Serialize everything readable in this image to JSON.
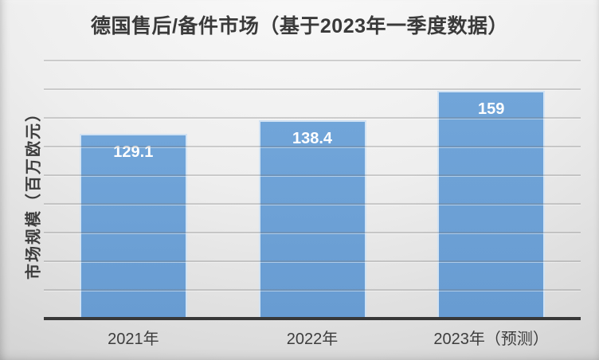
{
  "slide": {
    "title": "德国售后/备件市场（基于2023年一季度数据）"
  },
  "chart_data": {
    "type": "bar",
    "title": "德国售后/备件市场（基于2023年一季度数据）",
    "categories": [
      "2021年",
      "2022年",
      "2023年（预测）"
    ],
    "values": [
      129.1,
      138.4,
      159
    ],
    "value_labels": [
      "129.1",
      "138.4",
      "159"
    ],
    "xlabel": "",
    "ylabel": "市场规模（百万欧元）",
    "ylim": [
      0,
      180
    ],
    "gridline_step": 20,
    "grid": true,
    "legend": false,
    "data_labels": "inside-top",
    "colors": {
      "bar_fill": "#6CA0D5",
      "bar_border": "rgba(244,249,253,0.75)",
      "value_label": "#ffffff",
      "axis_line": "#383838",
      "gridline": "rgba(118,118,118,0.30)",
      "title_text": "#3a3a3a",
      "tick_text": "#3d3d3d",
      "background_top": "#fbfbfb",
      "background_bottom": "#c0c0c0"
    }
  }
}
